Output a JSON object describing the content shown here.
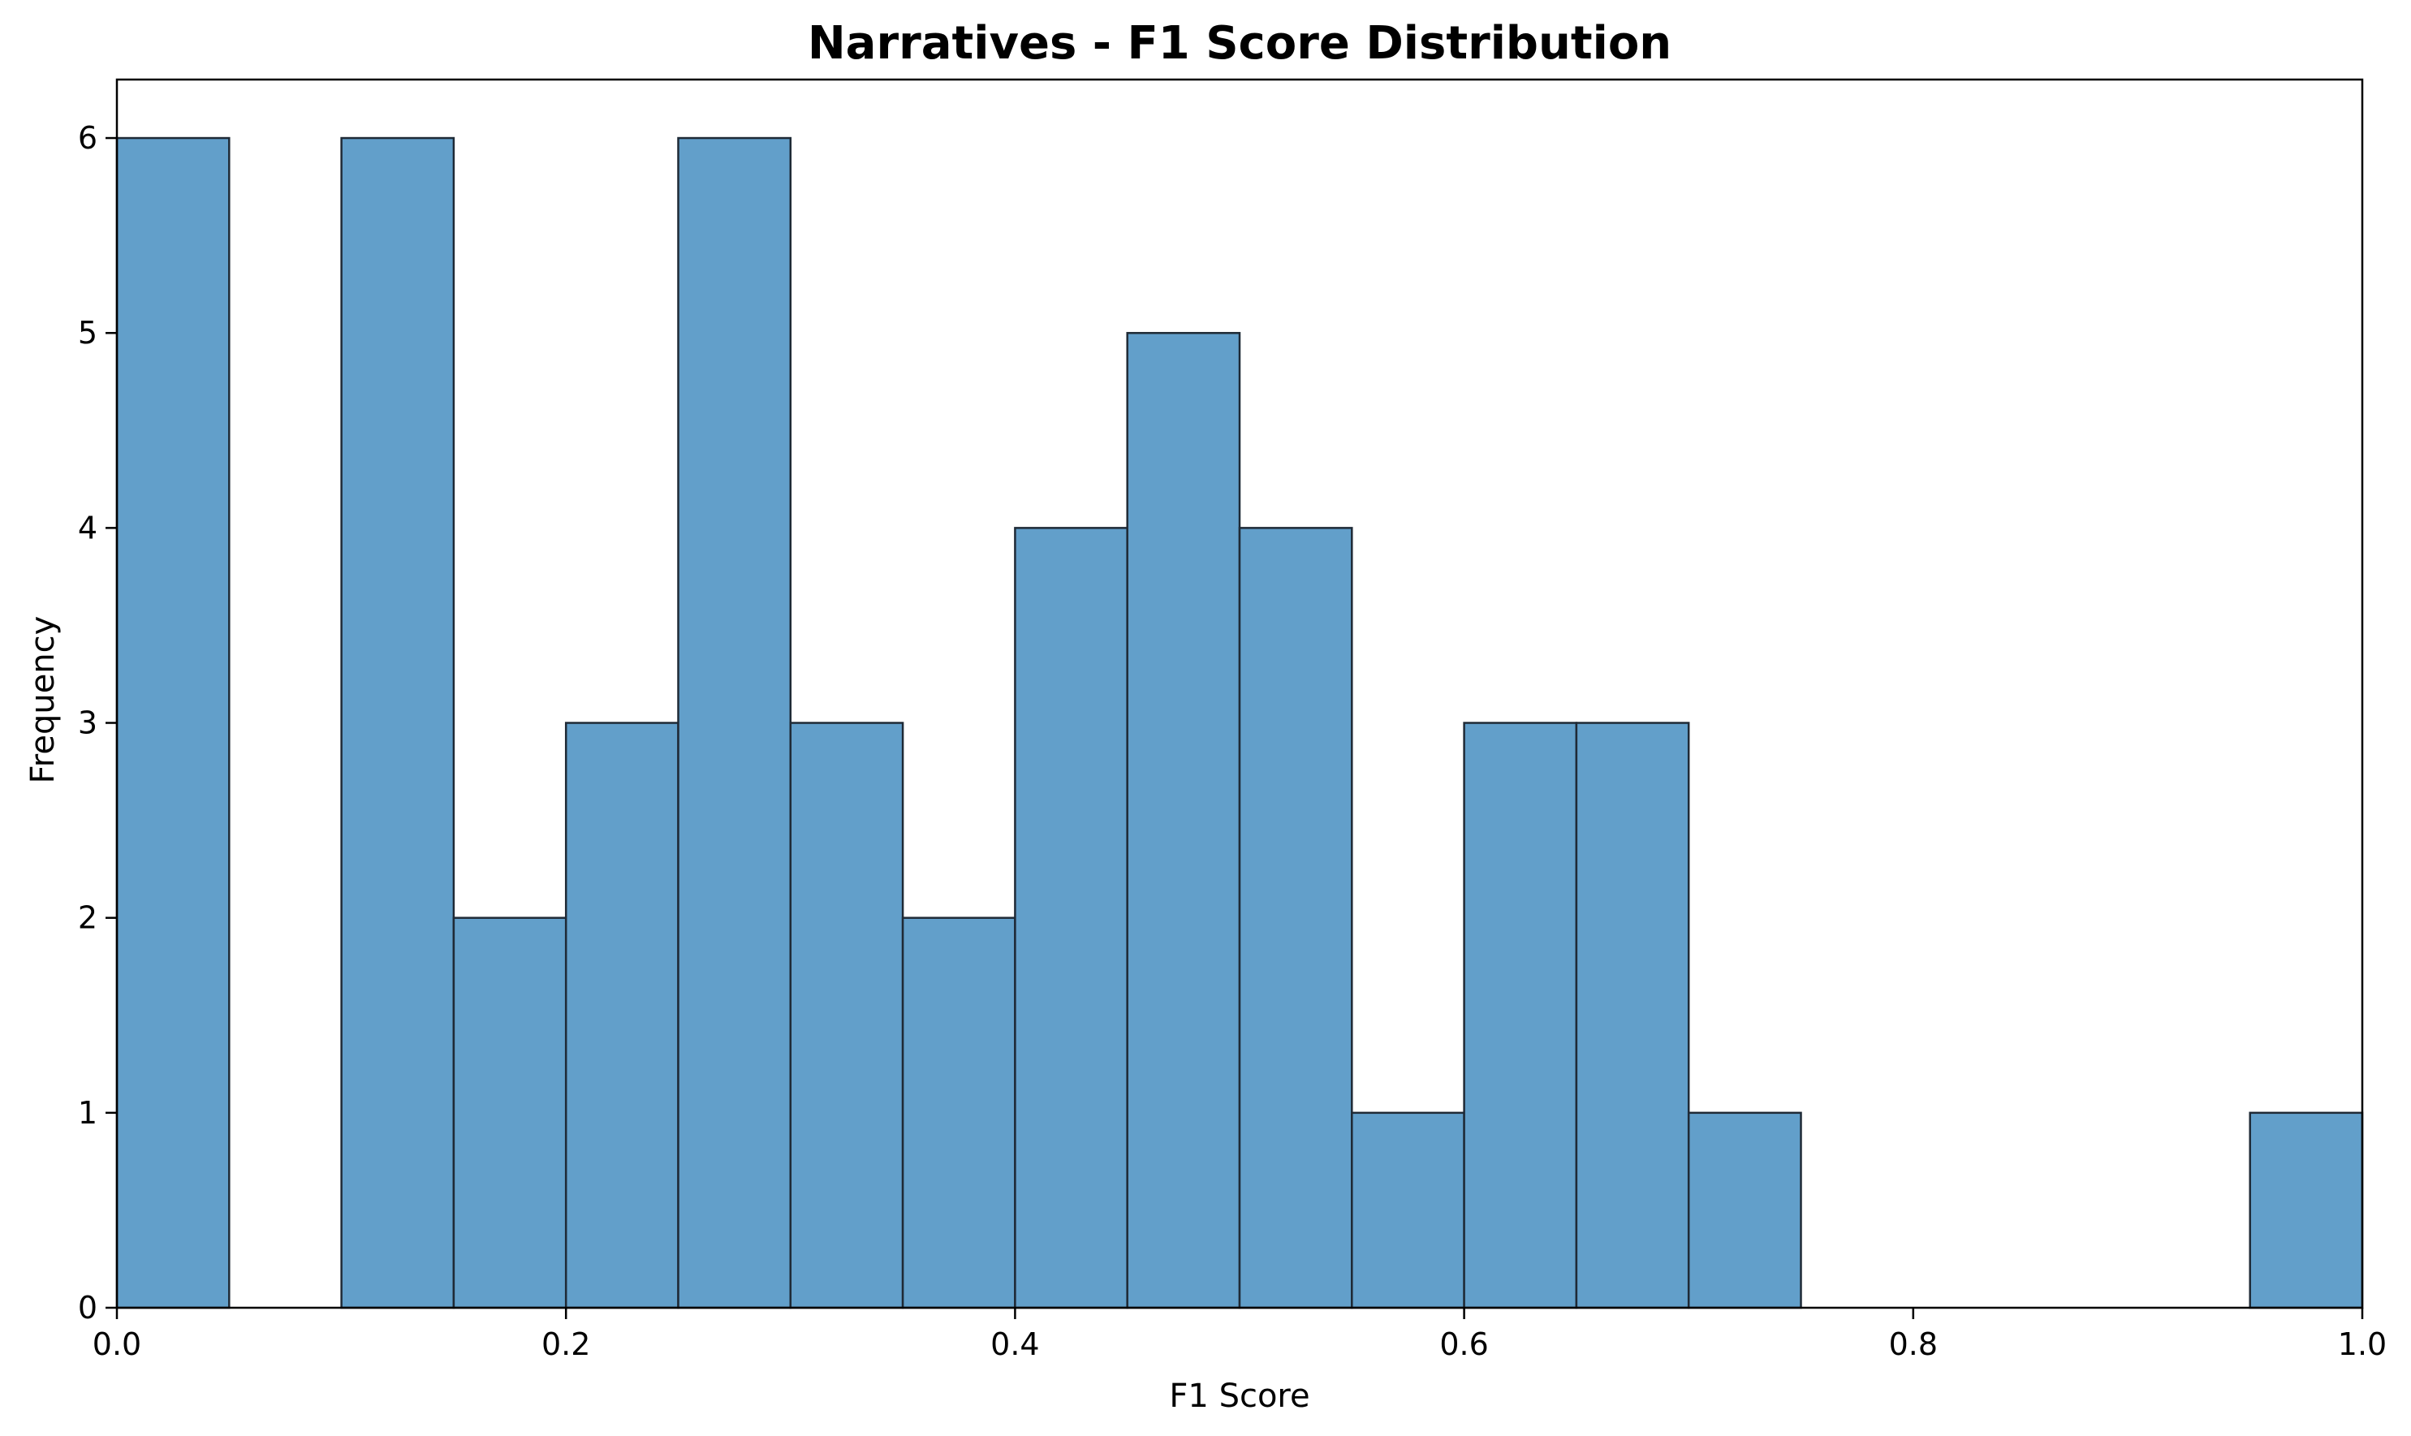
{
  "chart_data": {
    "type": "bar",
    "title": "Narratives - F1 Score Distribution",
    "xlabel": "F1 Score",
    "ylabel": "Frequency",
    "xlim": [
      0.0,
      1.0
    ],
    "ylim": [
      0,
      6.3
    ],
    "bin_width": 0.05,
    "bin_edges": [
      0.0,
      0.05,
      0.1,
      0.15,
      0.2,
      0.25,
      0.3,
      0.35,
      0.4,
      0.45,
      0.5,
      0.55,
      0.6,
      0.65,
      0.7,
      0.75,
      0.8,
      0.85,
      0.9,
      0.95,
      1.0
    ],
    "values": [
      6,
      0,
      6,
      2,
      3,
      6,
      3,
      2,
      4,
      5,
      4,
      1,
      3,
      3,
      1,
      0,
      0,
      0,
      0,
      1
    ],
    "x_ticks": [
      0.0,
      0.2,
      0.4,
      0.6,
      0.8,
      1.0
    ],
    "x_tick_labels": [
      "0.0",
      "0.2",
      "0.4",
      "0.6",
      "0.8",
      "1.0"
    ],
    "y_ticks": [
      0,
      1,
      2,
      3,
      4,
      5,
      6
    ],
    "y_tick_labels": [
      "0",
      "1",
      "2",
      "3",
      "4",
      "5",
      "6"
    ],
    "grid": false,
    "bar_color": "#629fca",
    "edge_color": "#1f2a36"
  }
}
